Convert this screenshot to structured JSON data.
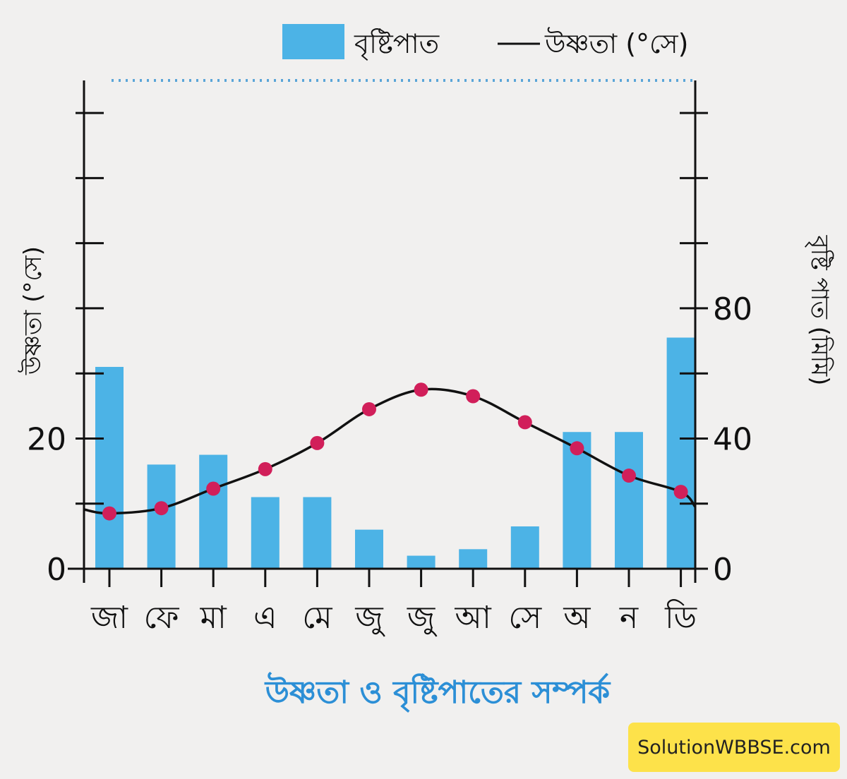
{
  "legend": {
    "rainfall_label": "বৃষ্টিপাত",
    "temperature_label": "উষ্ণতা (°সে)"
  },
  "caption": "উষ্ণতা ও বৃষ্টিপাতের সম্পর্ক",
  "watermark": "SolutionWBBSE.com",
  "colors": {
    "bar": "#4cb3e6",
    "line": "#111111",
    "marker": "#d11f5a",
    "caption": "#2c8fd6",
    "watermark_bg": "#fde24a",
    "background": "#f1f0ef"
  },
  "chart_data": {
    "type": "bar+line",
    "categories": [
      "জা",
      "ফে",
      "মা",
      "এ",
      "মে",
      "জু",
      "জু",
      "আ",
      "সে",
      "অ",
      "ন",
      "ডি"
    ],
    "series": [
      {
        "name": "বৃষ্টিপাত",
        "type": "bar",
        "axis": "right",
        "values": [
          62,
          32,
          35,
          22,
          22,
          12,
          4,
          6,
          13,
          42,
          42,
          71
        ]
      },
      {
        "name": "উষ্ণতা (°সে)",
        "type": "line",
        "axis": "left",
        "values": [
          8.5,
          9.3,
          12.3,
          15.3,
          19.3,
          24.5,
          27.5,
          26.5,
          22.5,
          18.5,
          14.3,
          11.8
        ]
      }
    ],
    "ylabel_left": "উষ্ণতা (°সে)",
    "ylabel_right": "বৃষ্টি পাত (মিমি)",
    "ylim_left": [
      0,
      75
    ],
    "ylim_right": [
      0,
      150
    ],
    "left_tick_labels": [
      "0",
      "20"
    ],
    "right_tick_labels": [
      "0",
      "40",
      "80"
    ],
    "grid": false,
    "legend_position": "top-right"
  }
}
